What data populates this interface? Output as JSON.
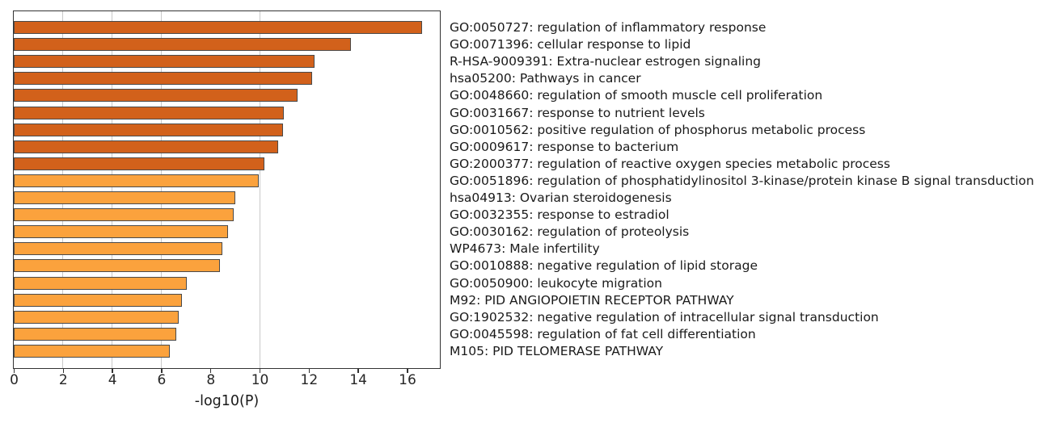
{
  "chart_data": {
    "type": "bar",
    "orientation": "horizontal",
    "title": "",
    "xlabel": "-log10(P)",
    "ylabel": "",
    "xlim": [
      0,
      17.3
    ],
    "x_ticks": [
      0,
      2,
      4,
      6,
      8,
      10,
      12,
      14,
      16
    ],
    "gridlines_x": [
      2,
      4,
      6,
      10
    ],
    "grid": "vertical-gridlines-only",
    "legend_position": "none",
    "categories": [
      "GO:0050727: regulation of inflammatory response",
      "GO:0071396: cellular response to lipid",
      "R-HSA-9009391: Extra-nuclear estrogen signaling",
      "hsa05200: Pathways in cancer",
      "GO:0048660: regulation of smooth muscle cell proliferation",
      "GO:0031667: response to nutrient levels",
      "GO:0010562: positive regulation of phosphorus metabolic process",
      "GO:0009617: response to bacterium",
      "GO:2000377: regulation of reactive oxygen species metabolic process",
      "GO:0051896: regulation of phosphatidylinositol 3-kinase/protein kinase B signal transduction",
      "hsa04913: Ovarian steroidogenesis",
      "GO:0032355: response to estradiol",
      "GO:0030162: regulation of proteolysis",
      "WP4673: Male infertility",
      "GO:0010888: negative regulation of lipid storage",
      "GO:0050900: leukocyte migration",
      "M92: PID ANGIOPOIETIN RECEPTOR PATHWAY",
      "GO:1902532: negative regulation of intracellular signal transduction",
      "GO:0045598: regulation of fat cell differentiation",
      "M105: PID TELOMERASE PATHWAY"
    ],
    "values": [
      16.6,
      13.7,
      12.25,
      12.15,
      11.55,
      11.0,
      10.95,
      10.75,
      10.2,
      9.95,
      9.0,
      8.95,
      8.7,
      8.5,
      8.4,
      7.05,
      6.85,
      6.7,
      6.6,
      6.35
    ],
    "bar_color_bins": {
      "minus_log10P_10_to_20": "#d2611b",
      "minus_log10P_6_to_10": "#fba23d"
    },
    "bar_colors": [
      "#d2611b",
      "#d2611b",
      "#d2611b",
      "#d2611b",
      "#d2611b",
      "#d2611b",
      "#d2611b",
      "#d2611b",
      "#d2611b",
      "#fba23d",
      "#fba23d",
      "#fba23d",
      "#fba23d",
      "#fba23d",
      "#fba23d",
      "#fba23d",
      "#fba23d",
      "#fba23d",
      "#fba23d",
      "#fba23d"
    ]
  },
  "colors": {
    "background": "#ffffff",
    "bar_edge": "#4a4a4a",
    "axis_spine": "#333333",
    "gridline": "#c9c9c9",
    "text": "#1a1a1a"
  }
}
